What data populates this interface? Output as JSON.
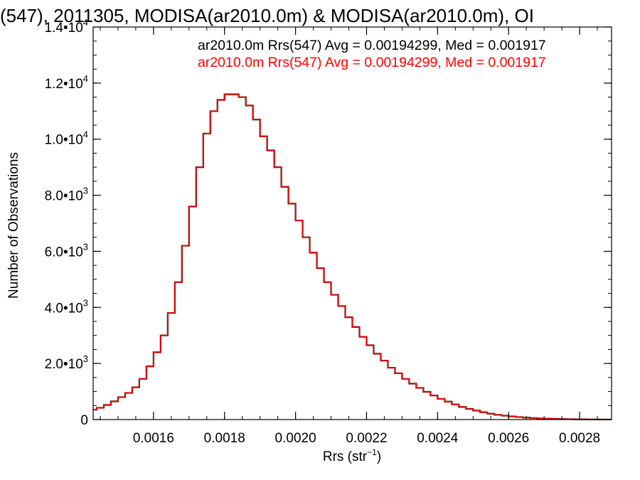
{
  "chart_data": {
    "type": "histogram",
    "title": "(547), 2011305, MODISA(ar2010.0m) & MODISA(ar2010.0m), OI",
    "xlabel": "Rrs (str",
    "xlabel_sup": "−1",
    "xlabel_end": ")",
    "ylabel": "Number of Observations",
    "xlim": [
      0.00143,
      0.00289
    ],
    "ylim": [
      0,
      14000
    ],
    "x_ticks": [
      {
        "value": 0.0016,
        "label": "0.0016"
      },
      {
        "value": 0.0018,
        "label": "0.0018"
      },
      {
        "value": 0.002,
        "label": "0.0020"
      },
      {
        "value": 0.0022,
        "label": "0.0022"
      },
      {
        "value": 0.0024,
        "label": "0.0024"
      },
      {
        "value": 0.0026,
        "label": "0.0026"
      },
      {
        "value": 0.0028,
        "label": "0.0028"
      }
    ],
    "y_ticks": [
      {
        "value": 0,
        "mant": "0",
        "exp": ""
      },
      {
        "value": 2000,
        "mant": "2.0•10",
        "exp": "3"
      },
      {
        "value": 4000,
        "mant": "4.0•10",
        "exp": "3"
      },
      {
        "value": 6000,
        "mant": "6.0•10",
        "exp": "3"
      },
      {
        "value": 8000,
        "mant": "8.0•10",
        "exp": "3"
      },
      {
        "value": 10000,
        "mant": "1.0•10",
        "exp": "4"
      },
      {
        "value": 12000,
        "mant": "1.2•10",
        "exp": "4"
      },
      {
        "value": 14000,
        "mant": "1.4•10",
        "exp": "4"
      }
    ],
    "legend": [
      {
        "text": "ar2010.0m Rrs(547) Avg = 0.00194299, Med = 0.001917",
        "color": "#000000"
      },
      {
        "text": "ar2010.0m Rrs(547) Avg = 0.00194299, Med = 0.001917",
        "color": "#ff0000"
      }
    ],
    "series": [
      {
        "color": "#000000",
        "x": [
          0.00143,
          0.00145,
          0.00147,
          0.00149,
          0.00151,
          0.00153,
          0.00155,
          0.00157,
          0.00159,
          0.00161,
          0.00163,
          0.00165,
          0.00167,
          0.00169,
          0.00171,
          0.00173,
          0.00175,
          0.00177,
          0.00179,
          0.00181,
          0.00183,
          0.00185,
          0.00187,
          0.00189,
          0.00191,
          0.00193,
          0.00195,
          0.00197,
          0.00199,
          0.00201,
          0.00203,
          0.00205,
          0.00207,
          0.00209,
          0.00211,
          0.00213,
          0.00215,
          0.00217,
          0.00219,
          0.00221,
          0.00223,
          0.00225,
          0.00227,
          0.00229,
          0.00231,
          0.00233,
          0.00235,
          0.00237,
          0.00239,
          0.00241,
          0.00243,
          0.00245,
          0.00247,
          0.00249,
          0.00251,
          0.00253,
          0.00255,
          0.00257,
          0.00259,
          0.00261,
          0.00263,
          0.00265,
          0.00267,
          0.00269,
          0.00271,
          0.00273,
          0.00275,
          0.00277,
          0.00279,
          0.00281,
          0.00283,
          0.00285,
          0.00287,
          0.00289
        ],
        "values": [
          350,
          420,
          520,
          650,
          800,
          950,
          1150,
          1450,
          1900,
          2400,
          3000,
          3800,
          4900,
          6200,
          7600,
          9000,
          10200,
          11000,
          11400,
          11600,
          11600,
          11500,
          11200,
          10700,
          10100,
          9600,
          9000,
          8300,
          7700,
          7100,
          6500,
          5950,
          5400,
          4900,
          4450,
          4050,
          3650,
          3300,
          2950,
          2650,
          2350,
          2100,
          1850,
          1650,
          1450,
          1280,
          1130,
          990,
          860,
          740,
          640,
          540,
          450,
          380,
          320,
          260,
          210,
          170,
          140,
          110,
          90,
          70,
          55,
          42,
          32,
          25,
          19,
          14,
          10,
          7,
          5,
          3,
          2,
          1
        ]
      },
      {
        "color": "#ff0000",
        "x": [
          0.00143,
          0.00145,
          0.00147,
          0.00149,
          0.00151,
          0.00153,
          0.00155,
          0.00157,
          0.00159,
          0.00161,
          0.00163,
          0.00165,
          0.00167,
          0.00169,
          0.00171,
          0.00173,
          0.00175,
          0.00177,
          0.00179,
          0.00181,
          0.00183,
          0.00185,
          0.00187,
          0.00189,
          0.00191,
          0.00193,
          0.00195,
          0.00197,
          0.00199,
          0.00201,
          0.00203,
          0.00205,
          0.00207,
          0.00209,
          0.00211,
          0.00213,
          0.00215,
          0.00217,
          0.00219,
          0.00221,
          0.00223,
          0.00225,
          0.00227,
          0.00229,
          0.00231,
          0.00233,
          0.00235,
          0.00237,
          0.00239,
          0.00241,
          0.00243,
          0.00245,
          0.00247,
          0.00249,
          0.00251,
          0.00253,
          0.00255,
          0.00257,
          0.00259,
          0.00261,
          0.00263,
          0.00265,
          0.00267,
          0.00269,
          0.00271,
          0.00273,
          0.00275,
          0.00277,
          0.00279,
          0.00281,
          0.00283,
          0.00285,
          0.00287,
          0.00289
        ],
        "values": [
          350,
          420,
          520,
          650,
          800,
          950,
          1150,
          1450,
          1900,
          2400,
          3000,
          3800,
          4900,
          6200,
          7600,
          9000,
          10200,
          11000,
          11400,
          11600,
          11600,
          11500,
          11200,
          10700,
          10100,
          9600,
          9000,
          8300,
          7700,
          7100,
          6500,
          5950,
          5400,
          4900,
          4450,
          4050,
          3650,
          3300,
          2950,
          2650,
          2350,
          2100,
          1850,
          1650,
          1450,
          1280,
          1130,
          990,
          860,
          740,
          640,
          540,
          450,
          380,
          320,
          260,
          210,
          170,
          140,
          110,
          90,
          70,
          55,
          42,
          32,
          25,
          19,
          14,
          10,
          7,
          5,
          3,
          2,
          1
        ]
      }
    ]
  }
}
